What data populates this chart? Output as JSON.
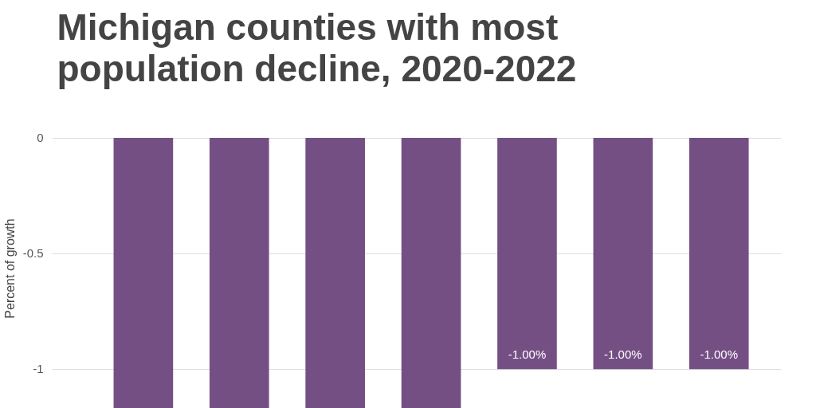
{
  "chart_data": {
    "type": "bar",
    "title": "Michigan counties with most population decline, 2020-2022",
    "ylabel": "Percent of growth",
    "categories": [
      null,
      null,
      null,
      null,
      null,
      null,
      null
    ],
    "values": [
      -1.17,
      -1.17,
      -1.17,
      -1.17,
      -1.0,
      -1.0,
      -1.0
    ],
    "value_labels": [
      null,
      null,
      null,
      null,
      "-1.00%",
      "-1.00%",
      "-1.00%"
    ],
    "color": "#744f84",
    "ylim": [
      -1.17,
      0
    ],
    "yticks": [
      0,
      -0.5,
      -1
    ],
    "grid": "y"
  }
}
